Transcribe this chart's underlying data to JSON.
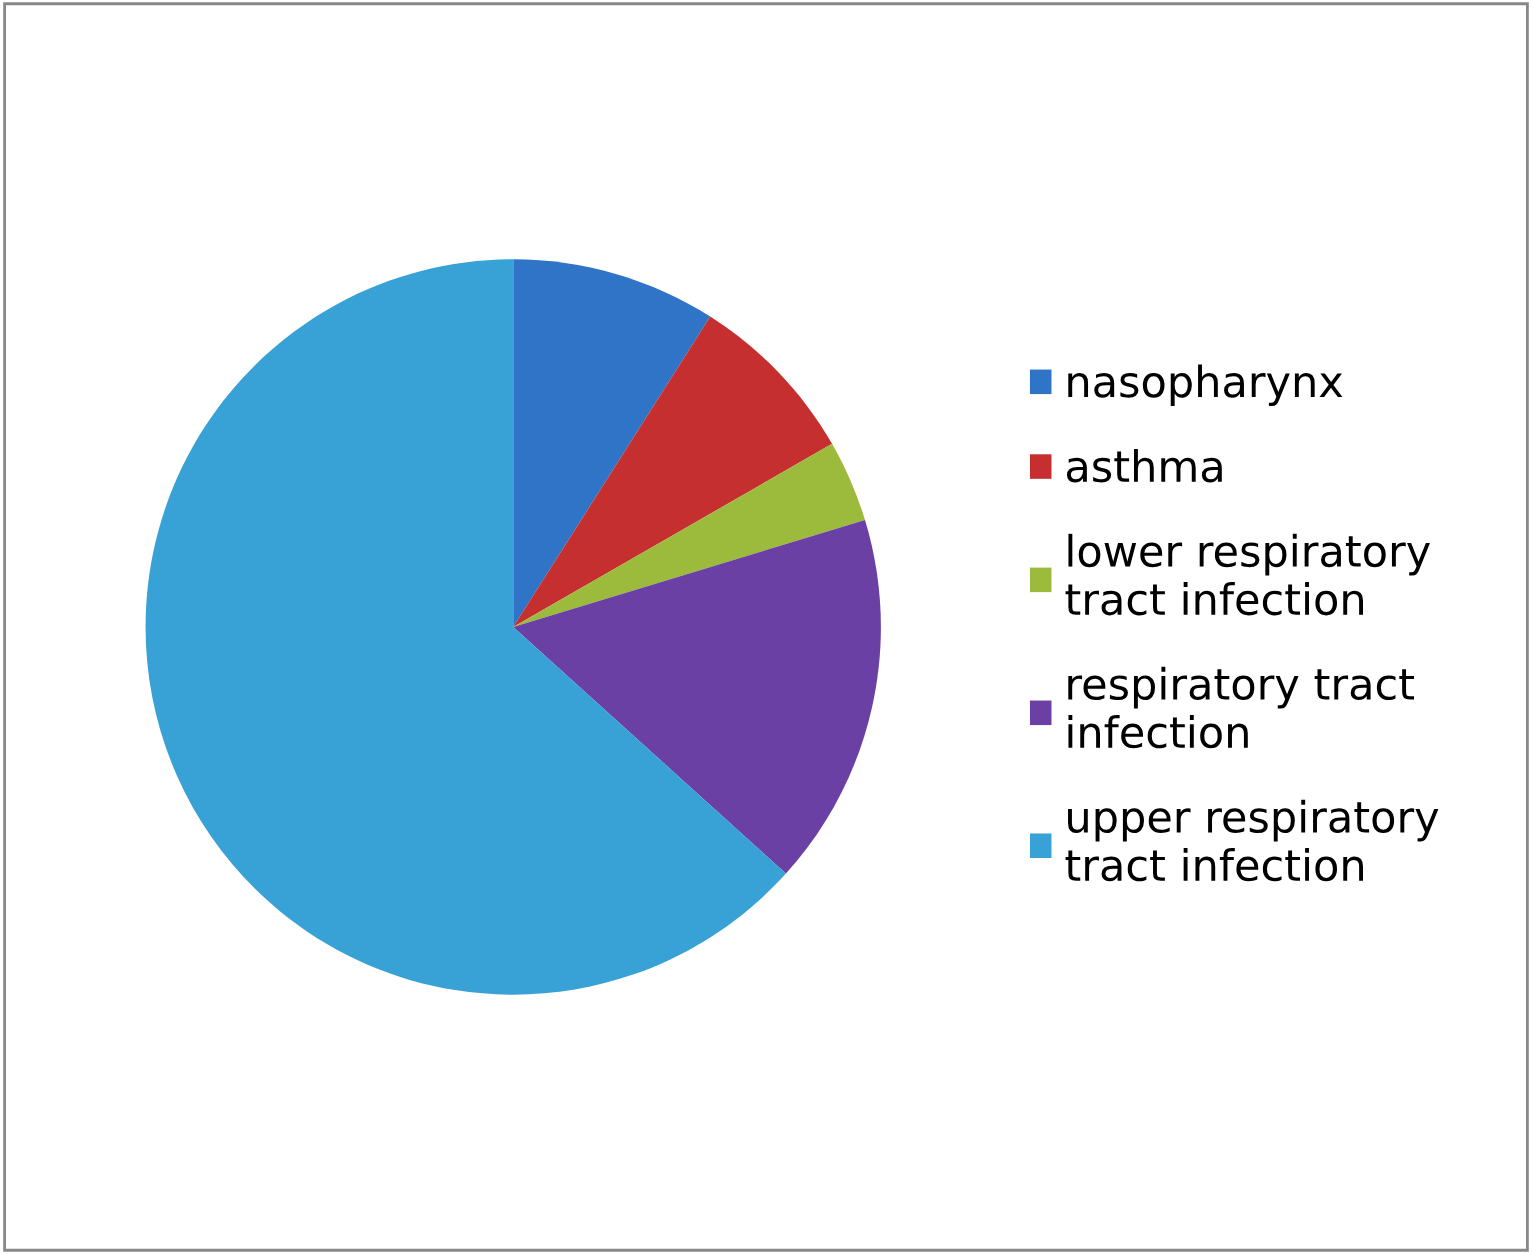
{
  "chart_data": {
    "type": "pie",
    "categories": [
      "nasopharynx",
      "asthma",
      "lower respiratory tract infection",
      "respiratory tract infection",
      "upper respiratory tract infection"
    ],
    "values": [
      9.0,
      7.7,
      3.6,
      16.4,
      63.3
    ],
    "colors": [
      "#2f74c6",
      "#c62f2f",
      "#9cba3c",
      "#6a40a4",
      "#38a2d6"
    ],
    "legend": "right"
  }
}
